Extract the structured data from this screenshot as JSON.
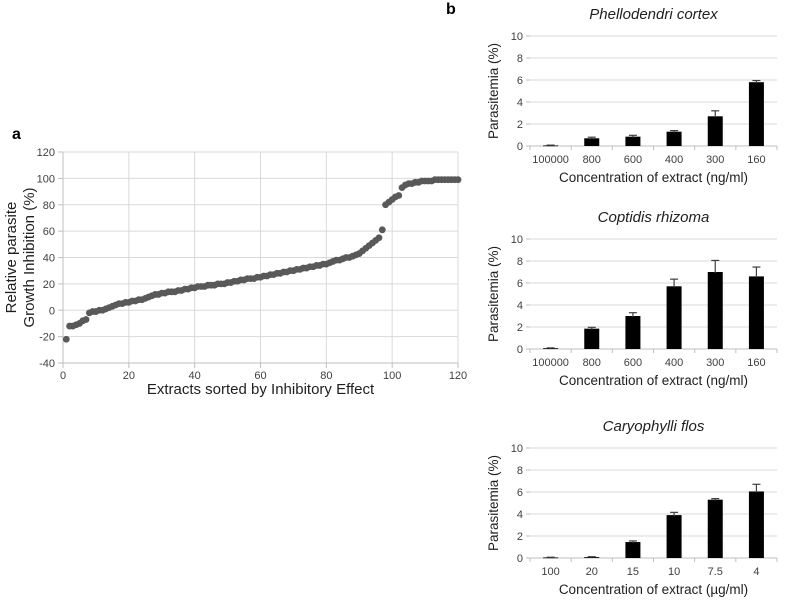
{
  "panels": {
    "a": {
      "label": "a"
    },
    "b": {
      "label": "b"
    }
  },
  "colors": {
    "scatter_point": "#595959",
    "bar": "#000000",
    "error_bar": "#404040",
    "gridline": "#d9d9d9",
    "axis_line": "#bfbfbf",
    "tick_text": "#404040",
    "title_text": "#1f1f1f"
  },
  "chart_data": [
    {
      "id": "chart-a",
      "type": "scatter",
      "title": "",
      "xlabel": "Extracts sorted by Inhibitory Effect",
      "ylabel_lines": [
        "Relative parasite",
        "Growth Inhibition (%)"
      ],
      "xlim": [
        0,
        120
      ],
      "ylim": [
        -40,
        120
      ],
      "xticks": [
        0,
        20,
        40,
        60,
        80,
        100,
        120
      ],
      "yticks": [
        -40,
        -20,
        0,
        20,
        40,
        60,
        80,
        100,
        120
      ],
      "grid": true,
      "x_start": 1,
      "y": [
        -22,
        -12,
        -12,
        -11,
        -10,
        -8,
        -7,
        -2,
        -1,
        -1,
        0,
        0,
        1,
        2,
        3,
        4,
        5,
        5,
        6,
        6,
        7,
        7,
        8,
        8,
        9,
        10,
        11,
        12,
        12,
        13,
        13,
        14,
        14,
        14,
        15,
        15,
        16,
        16,
        17,
        17,
        18,
        18,
        18,
        19,
        19,
        19,
        20,
        20,
        20,
        21,
        21,
        22,
        22,
        23,
        23,
        24,
        24,
        24,
        25,
        25,
        26,
        26,
        27,
        27,
        28,
        28,
        29,
        29,
        30,
        30,
        31,
        31,
        32,
        32,
        33,
        33,
        34,
        34,
        35,
        35,
        36,
        37,
        38,
        38,
        39,
        40,
        40,
        41,
        42,
        43,
        45,
        47,
        49,
        51,
        53,
        55,
        61,
        80,
        82,
        84,
        86,
        87,
        93,
        95,
        96,
        96,
        97,
        97,
        98,
        98,
        98,
        98,
        99,
        99,
        99,
        99,
        99,
        99,
        99,
        99
      ]
    },
    {
      "id": "chart-b1",
      "type": "bar",
      "title": "Phellodendri cortex",
      "xlabel": "Concentration of extract (ng/ml)",
      "ylabel": "Parasitemia (%)",
      "categories": [
        "100000",
        "800",
        "600",
        "400",
        "300",
        "160"
      ],
      "values": [
        0.05,
        0.7,
        0.85,
        1.3,
        2.7,
        5.8
      ],
      "errors": [
        0.03,
        0.1,
        0.12,
        0.1,
        0.5,
        0.15
      ],
      "ylim": [
        0,
        10
      ],
      "yticks": [
        0,
        2,
        4,
        6,
        8,
        10
      ],
      "grid": true
    },
    {
      "id": "chart-b2",
      "type": "bar",
      "title": "Coptidis rhizoma",
      "xlabel": "Concentration of extract (ng/ml)",
      "ylabel": "Parasitemia (%)",
      "categories": [
        "100000",
        "800",
        "600",
        "400",
        "300",
        "160"
      ],
      "values": [
        0.07,
        1.85,
        3.0,
        5.7,
        7.0,
        6.6
      ],
      "errors": [
        0.03,
        0.12,
        0.3,
        0.65,
        1.05,
        0.85
      ],
      "ylim": [
        0,
        10
      ],
      "yticks": [
        0,
        2,
        4,
        6,
        8,
        10
      ],
      "grid": true
    },
    {
      "id": "chart-b3",
      "type": "bar",
      "title": "Caryophylli flos",
      "xlabel": "Concentration of extract (µg/ml)",
      "ylabel": "Parasitemia (%)",
      "categories": [
        "100",
        "20",
        "15",
        "10",
        "7.5",
        "4"
      ],
      "values": [
        0.05,
        0.08,
        1.45,
        3.9,
        5.3,
        6.05
      ],
      "errors": [
        0.02,
        0.04,
        0.1,
        0.25,
        0.1,
        0.65
      ],
      "ylim": [
        0,
        10
      ],
      "yticks": [
        0,
        2,
        4,
        6,
        8,
        10
      ],
      "grid": true
    }
  ]
}
